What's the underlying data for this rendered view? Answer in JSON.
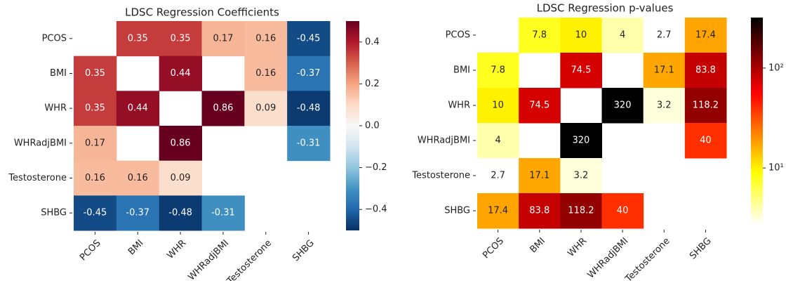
{
  "chart_data": [
    {
      "type": "heatmap",
      "title": "LDSC Regression Coefficients",
      "rows": [
        "PCOS",
        "BMI",
        "WHR",
        "WHRadjBMI",
        "Testosterone",
        "SHBG"
      ],
      "columns": [
        "PCOS",
        "BMI",
        "WHR",
        "WHRadjBMI",
        "Testosterone",
        "SHBG"
      ],
      "values": [
        [
          null,
          0.35,
          0.35,
          0.17,
          0.16,
          -0.45
        ],
        [
          0.35,
          null,
          0.44,
          null,
          0.16,
          -0.37
        ],
        [
          0.35,
          0.44,
          null,
          0.86,
          0.09,
          -0.48
        ],
        [
          0.17,
          null,
          0.86,
          null,
          null,
          -0.31
        ],
        [
          0.16,
          0.16,
          0.09,
          null,
          null,
          null
        ],
        [
          -0.45,
          -0.37,
          -0.48,
          -0.31,
          null,
          null
        ]
      ],
      "colormap": "RdBu_r",
      "log_scale": false,
      "vlim": [
        -0.5,
        0.5
      ],
      "cticks": [
        {
          "value": -0.4,
          "label": "−0.4"
        },
        {
          "value": -0.2,
          "label": "−0.2"
        },
        {
          "value": 0,
          "label": "0.0"
        },
        0.2,
        0.4
      ]
    },
    {
      "type": "heatmap",
      "title": "LDSC Regression p-values",
      "rows": [
        "PCOS",
        "BMI",
        "WHR",
        "WHRadjBMI",
        "Testosterone",
        "SHBG"
      ],
      "columns": [
        "PCOS",
        "BMI",
        "WHR",
        "WHRadjBMI",
        "Testosterone",
        "SHBG"
      ],
      "values": [
        [
          null,
          7.8,
          10,
          4,
          2.7,
          17.4
        ],
        [
          7.8,
          null,
          74.5,
          null,
          17.1,
          83.8
        ],
        [
          10,
          74.5,
          null,
          320,
          3.2,
          118.2
        ],
        [
          4,
          null,
          320,
          null,
          null,
          40
        ],
        [
          2.7,
          17.1,
          3.2,
          null,
          null,
          null
        ],
        [
          17.4,
          83.8,
          118.2,
          40,
          null,
          null
        ]
      ],
      "colormap": "hot_r",
      "log_scale": true,
      "vlim": [
        2.7,
        320
      ],
      "cticks": [
        {
          "value": 10,
          "label": "10¹"
        },
        {
          "value": 100,
          "label": "10²"
        }
      ]
    }
  ]
}
